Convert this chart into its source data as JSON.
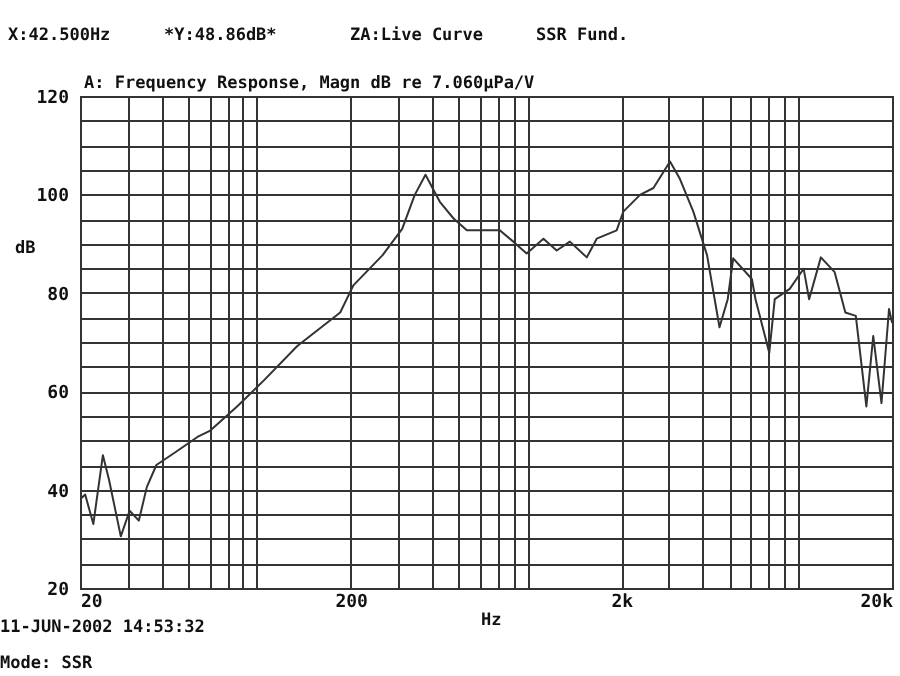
{
  "chart_data": {
    "type": "line",
    "title": "A: Frequency Response, Magn dB re 7.060µPa/V",
    "xlabel": "Hz",
    "ylabel": "dB",
    "annotations": [
      "X:42.500Hz",
      "*Y:48.86dB*",
      "ZA:Live Curve",
      "SSR Fund.",
      "11-JUN-2002 14:53:32",
      "Mode: SSR"
    ],
    "x": [
      20,
      20.9,
      22.4,
      24.3,
      25.6,
      28.3,
      30.5,
      33,
      35.3,
      38.3,
      45,
      54.3,
      60.6,
      76.1,
      96,
      127,
      183,
      204.6,
      262,
      310,
      345,
      378,
      427,
      480,
      537,
      601,
      711,
      798,
      894,
      1031,
      1154,
      1291,
      1491,
      1622,
      1922,
      2034,
      2344,
      2628,
      3026,
      3282,
      3690,
      4148,
      4610,
      4944,
      5180,
      6070,
      6262,
      7040,
      7376,
      8380,
      9430,
      9880,
      10920,
      12280,
      13450,
      14700,
      16080,
      17050,
      18290,
      19500,
      20000
    ],
    "series": [
      {
        "color": "#333333",
        "values": [
          38,
          39,
          33,
          47,
          42,
          30.5,
          35.7,
          33.7,
          40.5,
          45,
          47.6,
          50.7,
          52,
          56.9,
          62.3,
          69.2,
          76,
          81.5,
          87.6,
          93,
          99.9,
          104,
          98.5,
          95.1,
          92.7,
          92.7,
          92.7,
          90.4,
          88,
          91,
          88.6,
          90.4,
          87.2,
          91,
          92.7,
          96.5,
          99.9,
          101.3,
          106.7,
          103.3,
          96.5,
          87.6,
          73,
          78.7,
          87,
          82.8,
          78.7,
          67.8,
          78.7,
          80.8,
          84.9,
          78.7,
          87.2,
          84.2,
          76,
          75.3,
          56.9,
          71.2,
          57.6,
          76.7,
          74
        ]
      }
    ],
    "log": "x",
    "grid": true,
    "xlim": [
      20,
      20000
    ],
    "xticks": [
      {
        "value": 20,
        "label": "20"
      },
      {
        "value": 30,
        "label": null
      },
      {
        "value": 40,
        "label": null
      },
      {
        "value": 50,
        "label": null
      },
      {
        "value": 60,
        "label": null
      },
      {
        "value": 70,
        "label": null
      },
      {
        "value": 80,
        "label": null
      },
      {
        "value": 90,
        "label": null
      },
      {
        "value": 200,
        "label": "200"
      },
      {
        "value": 300,
        "label": null
      },
      {
        "value": 400,
        "label": null
      },
      {
        "value": 500,
        "label": null
      },
      {
        "value": 600,
        "label": null
      },
      {
        "value": 700,
        "label": null
      },
      {
        "value": 800,
        "label": null
      },
      {
        "value": 900,
        "label": null
      },
      {
        "value": 2000,
        "label": "2k"
      },
      {
        "value": 3000,
        "label": null
      },
      {
        "value": 4000,
        "label": null
      },
      {
        "value": 5000,
        "label": null
      },
      {
        "value": 6000,
        "label": null
      },
      {
        "value": 7000,
        "label": null
      },
      {
        "value": 8000,
        "label": null
      },
      {
        "value": 9000,
        "label": null
      },
      {
        "value": 20000,
        "label": "20k"
      }
    ],
    "ylim": [
      20,
      120
    ],
    "yticks": [
      20,
      {
        "value": 25,
        "label": null
      },
      {
        "value": 30,
        "label": null
      },
      {
        "value": 35,
        "label": null
      },
      40,
      {
        "value": 45,
        "label": null
      },
      {
        "value": 50,
        "label": null
      },
      {
        "value": 55,
        "label": null
      },
      60,
      {
        "value": 65,
        "label": null
      },
      {
        "value": 70,
        "label": null
      },
      {
        "value": 75,
        "label": null
      },
      80,
      {
        "value": 85,
        "label": null
      },
      {
        "value": 90,
        "label": null
      },
      {
        "value": 95,
        "label": null
      },
      100,
      {
        "value": 105,
        "label": null
      },
      {
        "value": 110,
        "label": null
      },
      {
        "value": 115,
        "label": null
      },
      120
    ],
    "marker": "none",
    "line_style": "solid"
  }
}
